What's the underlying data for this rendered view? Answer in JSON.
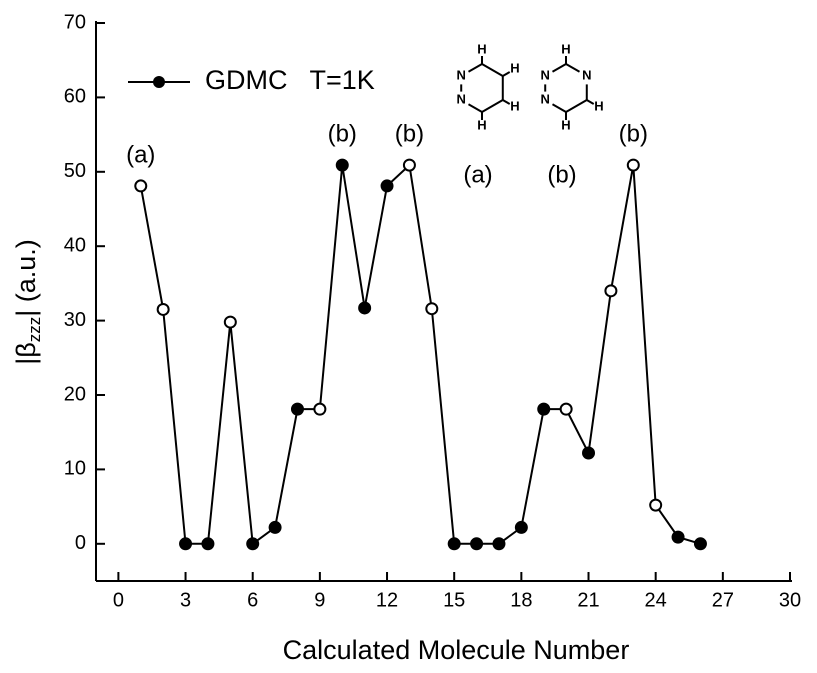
{
  "chart_data": {
    "type": "line",
    "x_label": "Calculated Molecule Number",
    "y_label": {
      "text": "|β",
      "sub": "zzz",
      "rest": "| (a.u.)"
    },
    "x": [
      1,
      2,
      3,
      4,
      5,
      6,
      7,
      8,
      9,
      10,
      11,
      12,
      13,
      14,
      15,
      16,
      17,
      18,
      19,
      20,
      21,
      22,
      23,
      24,
      25,
      26
    ],
    "series": [
      {
        "name": "GDMC   T=1K",
        "color": "#000000",
        "values": [
          48.1,
          31.5,
          0,
          0,
          29.8,
          0,
          2.2,
          18.1,
          18.1,
          50.9,
          31.7,
          48.1,
          50.9,
          31.6,
          0,
          0,
          0,
          2.2,
          18.1,
          18.1,
          12.2,
          34,
          50.9,
          5.2,
          0.9,
          0
        ],
        "marker_fill": [
          "open",
          "open",
          "filled",
          "filled",
          "open",
          "filled",
          "filled",
          "filled",
          "open",
          "filled",
          "filled",
          "filled",
          "open",
          "open",
          "filled",
          "filled",
          "filled",
          "filled",
          "filled",
          "open",
          "filled",
          "open",
          "open",
          "open",
          "filled",
          "filled"
        ]
      }
    ],
    "annotations": [
      {
        "text": "(a)",
        "x": 1,
        "y": 48.1
      },
      {
        "text": "(b)",
        "x": 10,
        "y": 50.9
      },
      {
        "text": "(b)",
        "x": 13,
        "y": 50.9
      },
      {
        "text": "(b)",
        "x": 23,
        "y": 50.9
      }
    ],
    "molecules": [
      {
        "label": "(a)",
        "ring": [
          null,
          null,
          null,
          null,
          "N",
          "N"
        ],
        "substituents": [
          "H",
          "H",
          "H",
          "H",
          null,
          null
        ]
      },
      {
        "label": "(b)",
        "ring": [
          null,
          "N",
          null,
          null,
          "N",
          "N"
        ],
        "substituents": [
          "H",
          null,
          "H",
          "H",
          null,
          null
        ]
      }
    ],
    "xlim": [
      -1,
      30
    ],
    "xticks": [
      0,
      3,
      6,
      9,
      12,
      15,
      18,
      21,
      24,
      27,
      30
    ],
    "ylim": [
      -5,
      70
    ],
    "yticks": [
      0,
      10,
      20,
      30,
      40,
      50,
      60,
      70
    ],
    "legend": "upper left",
    "grid": false
  }
}
